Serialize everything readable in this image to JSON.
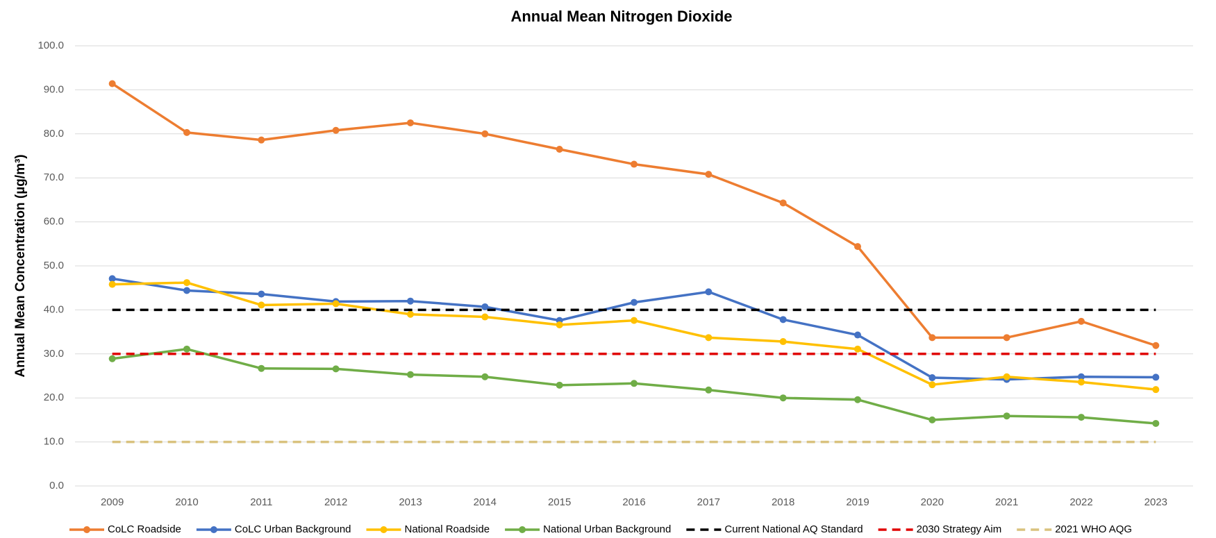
{
  "chart_data": {
    "type": "line",
    "title": "Annual Mean Nitrogen Dioxide",
    "y_label": "Annual Mean Concentration (µg/m³)",
    "categories": [
      "2009",
      "2010",
      "2011",
      "2012",
      "2013",
      "2014",
      "2015",
      "2016",
      "2017",
      "2018",
      "2019",
      "2020",
      "2021",
      "2022",
      "2023"
    ],
    "ylim": [
      0,
      100
    ],
    "yticks": [
      {
        "value": 0,
        "label": "0.0"
      },
      {
        "value": 10,
        "label": "10.0"
      },
      {
        "value": 20,
        "label": "20.0"
      },
      {
        "value": 30,
        "label": "30.0"
      },
      {
        "value": 40,
        "label": "40.0"
      },
      {
        "value": 50,
        "label": "50.0"
      },
      {
        "value": 60,
        "label": "60.0"
      },
      {
        "value": 70,
        "label": "70.0"
      },
      {
        "value": 80,
        "label": "80.0"
      },
      {
        "value": 90,
        "label": "90.0"
      },
      {
        "value": 100,
        "label": "100.0"
      }
    ],
    "grid": true,
    "legend": "bottom",
    "series": [
      {
        "name": "CoLC Roadside",
        "color": "#ed7d31",
        "markers": true,
        "values": [
          91.4,
          80.3,
          78.6,
          80.8,
          82.5,
          80.0,
          76.5,
          73.1,
          70.8,
          64.3,
          54.4,
          33.7,
          33.7,
          37.4,
          31.9
        ]
      },
      {
        "name": "CoLC Urban Background",
        "color": "#4472c4",
        "markers": true,
        "values": [
          47.1,
          44.4,
          43.6,
          41.9,
          42.0,
          40.7,
          37.6,
          41.7,
          44.1,
          37.8,
          34.3,
          24.6,
          24.2,
          24.8,
          24.7
        ]
      },
      {
        "name": "National Roadside",
        "color": "#ffc000",
        "markers": true,
        "values": [
          45.8,
          46.2,
          41.1,
          41.4,
          39.0,
          38.4,
          36.6,
          37.6,
          33.7,
          32.8,
          31.1,
          23.0,
          24.8,
          23.6,
          21.9
        ]
      },
      {
        "name": "National Urban Background",
        "color": "#70ad47",
        "markers": true,
        "values": [
          28.9,
          31.1,
          26.7,
          26.6,
          25.3,
          24.8,
          22.9,
          23.3,
          21.8,
          20.0,
          19.6,
          15.0,
          15.9,
          15.6,
          14.2
        ]
      },
      {
        "name": "Current National AQ Standard",
        "color": "#000000",
        "dashed": true,
        "values": [
          40,
          40,
          40,
          40,
          40,
          40,
          40,
          40,
          40,
          40,
          40,
          40,
          40,
          40,
          40
        ]
      },
      {
        "name": "2030 Strategy Aim",
        "color": "#e00000",
        "dashed": true,
        "values": [
          30,
          30,
          30,
          30,
          30,
          30,
          30,
          30,
          30,
          30,
          30,
          30,
          30,
          30,
          30
        ]
      },
      {
        "name": "2021 WHO AQG",
        "color": "#d9c27e",
        "dashed": true,
        "values": [
          10,
          10,
          10,
          10,
          10,
          10,
          10,
          10,
          10,
          10,
          10,
          10,
          10,
          10,
          10
        ]
      }
    ]
  }
}
